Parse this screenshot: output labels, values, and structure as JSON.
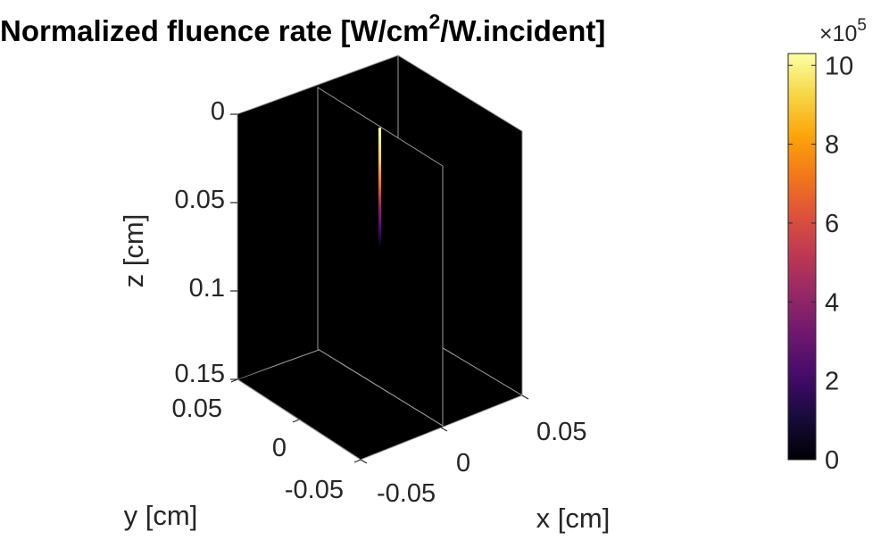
{
  "chart_data": {
    "type": "heatmap",
    "title_main": "Normalized fluence rate [W/cm",
    "title_sup": "2",
    "title_rest": "/W.incident]",
    "xlabel": "x [cm]",
    "ylabel": "y [cm]",
    "zlabel": "z [cm]",
    "x_ticks": [
      "-0.05",
      "0",
      "0.05"
    ],
    "y_ticks": [
      "-0.05",
      "0",
      "0.05"
    ],
    "z_ticks": [
      "0",
      "0.05",
      "0.1",
      "0.15"
    ],
    "xlim": [
      -0.06,
      0.06
    ],
    "ylim": [
      -0.06,
      0.06
    ],
    "zlim": [
      0,
      0.15
    ],
    "z_direction": "reverse",
    "grid": false,
    "background": "#000000",
    "colormap": "inferno",
    "colorbar": {
      "ticks": [
        "0",
        "2",
        "4",
        "6",
        "8",
        "10"
      ],
      "values": [
        0,
        2,
        4,
        6,
        8,
        10
      ],
      "range": [
        0,
        10.3
      ],
      "multiplier_base": "×10",
      "multiplier_exp": "5"
    },
    "slices": [
      "x = 0",
      "y = 0"
    ],
    "hotspot": {
      "x": 0,
      "y": 0,
      "z_top": 0.005,
      "z_bottom": 0.04,
      "peak_value": 1000000.0
    },
    "colors": {
      "frame": "#9a9a9a",
      "text": "#262626",
      "title": "#000000"
    }
  }
}
